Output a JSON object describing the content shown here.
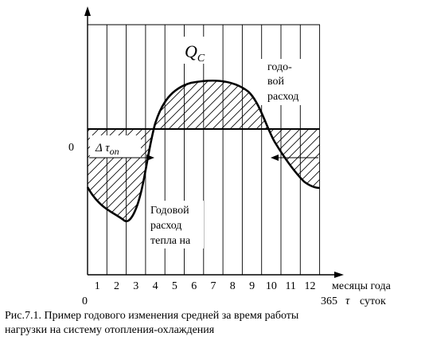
{
  "figure": {
    "qc_symbol": "Q",
    "qc_subscript": "C",
    "annual_consumption_label": [
      "годо-",
      "вой",
      "расход"
    ],
    "annual_heat_label": [
      "Годовой",
      "расход",
      "тепла на"
    ],
    "zero_label": "0",
    "delta_label": "Δ τ",
    "delta_subscript": "оп",
    "month_ticks": [
      "1",
      "2",
      "3",
      "4",
      "5",
      "6",
      "7",
      "8",
      "9",
      "10",
      "11",
      "12"
    ],
    "months_axis_label": "месяцы года",
    "origin_label": "0",
    "days_value": "365",
    "tau_symbol": "τ",
    "days_unit": "суток"
  },
  "caption": {
    "line1": "Рис.7.1. Пример годового изменения средней за время работы",
    "line2": "нагрузки на систему отопления-охлаждения"
  }
}
